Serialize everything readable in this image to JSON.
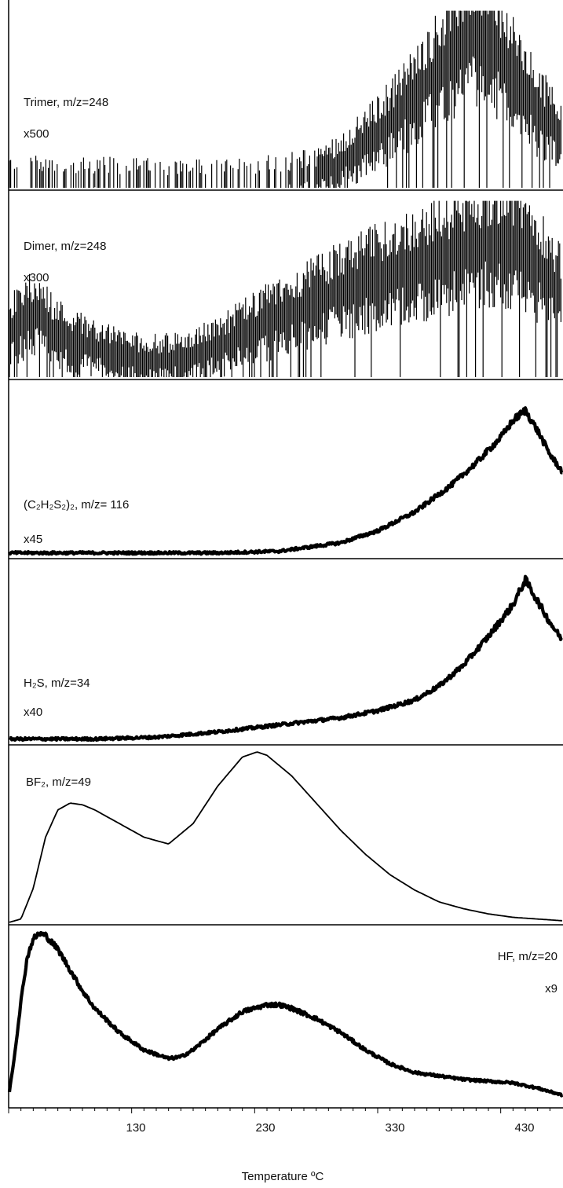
{
  "chart_data": {
    "type": "line",
    "xlabel": "Temperature ºC",
    "x_ticks": [
      "130",
      "230",
      "330",
      "430"
    ],
    "xlim": [
      30,
      480
    ],
    "colors": {
      "line": "#000000",
      "axis": "#000000"
    },
    "panels": [
      {
        "label": "Trimer, m/z=248",
        "scale": "x500",
        "noise": "high",
        "x": [
          30,
          60,
          100,
          130,
          160,
          190,
          220,
          250,
          280,
          300,
          320,
          340,
          360,
          380,
          400,
          410,
          420,
          440,
          460,
          480
        ],
        "y": [
          0.05,
          0.05,
          0.04,
          0.04,
          0.03,
          0.03,
          0.04,
          0.05,
          0.08,
          0.14,
          0.24,
          0.36,
          0.5,
          0.66,
          0.8,
          0.86,
          0.82,
          0.62,
          0.42,
          0.3
        ]
      },
      {
        "label": "Dimer, m/z=248",
        "scale": "x300",
        "noise": "high",
        "x": [
          30,
          50,
          70,
          90,
          110,
          130,
          150,
          170,
          190,
          210,
          230,
          260,
          290,
          320,
          350,
          380,
          410,
          430,
          450,
          470,
          480
        ],
        "y": [
          0.25,
          0.36,
          0.24,
          0.18,
          0.14,
          0.1,
          0.09,
          0.1,
          0.14,
          0.2,
          0.27,
          0.36,
          0.45,
          0.53,
          0.6,
          0.66,
          0.72,
          0.76,
          0.7,
          0.55,
          0.45
        ]
      },
      {
        "label": "(C₂H₂S₂)₂, m/z= 116",
        "scale": "x45",
        "noise": "low",
        "x": [
          30,
          100,
          150,
          200,
          250,
          300,
          330,
          360,
          390,
          410,
          430,
          440,
          450,
          460,
          470,
          480
        ],
        "y": [
          0.02,
          0.02,
          0.02,
          0.02,
          0.03,
          0.08,
          0.15,
          0.26,
          0.42,
          0.55,
          0.7,
          0.8,
          0.86,
          0.74,
          0.6,
          0.5
        ]
      },
      {
        "label": "H₂S, m/z=34",
        "scale": "x40",
        "noise": "low",
        "x": [
          30,
          100,
          150,
          200,
          250,
          300,
          330,
          360,
          380,
          400,
          420,
          440,
          450,
          460,
          470,
          480
        ],
        "y": [
          0.02,
          0.02,
          0.03,
          0.06,
          0.1,
          0.14,
          0.18,
          0.24,
          0.32,
          0.44,
          0.6,
          0.78,
          0.92,
          0.8,
          0.68,
          0.58
        ]
      },
      {
        "label": "BF₂, m/z=49",
        "scale": "",
        "noise": "none",
        "x": [
          30,
          40,
          50,
          60,
          70,
          80,
          90,
          100,
          120,
          140,
          160,
          180,
          200,
          220,
          232,
          240,
          260,
          280,
          300,
          320,
          340,
          360,
          380,
          400,
          420,
          440,
          460,
          480
        ],
        "y": [
          0,
          0.02,
          0.2,
          0.5,
          0.66,
          0.7,
          0.69,
          0.66,
          0.58,
          0.5,
          0.46,
          0.58,
          0.8,
          0.97,
          1.0,
          0.98,
          0.86,
          0.7,
          0.54,
          0.4,
          0.28,
          0.19,
          0.12,
          0.08,
          0.05,
          0.03,
          0.02,
          0.01
        ]
      },
      {
        "label": "HF, m/z=20",
        "scale": "x9",
        "noise": "medium",
        "x": [
          30,
          35,
          40,
          45,
          50,
          55,
          60,
          70,
          80,
          90,
          100,
          120,
          140,
          160,
          170,
          180,
          200,
          220,
          240,
          250,
          260,
          280,
          300,
          320,
          340,
          360,
          380,
          400,
          420,
          440,
          460,
          480
        ],
        "y": [
          0.05,
          0.3,
          0.6,
          0.85,
          0.96,
          0.99,
          0.98,
          0.9,
          0.78,
          0.66,
          0.56,
          0.42,
          0.32,
          0.27,
          0.28,
          0.32,
          0.44,
          0.54,
          0.58,
          0.58,
          0.56,
          0.5,
          0.42,
          0.32,
          0.24,
          0.19,
          0.17,
          0.15,
          0.14,
          0.13,
          0.1,
          0.06
        ]
      }
    ]
  }
}
